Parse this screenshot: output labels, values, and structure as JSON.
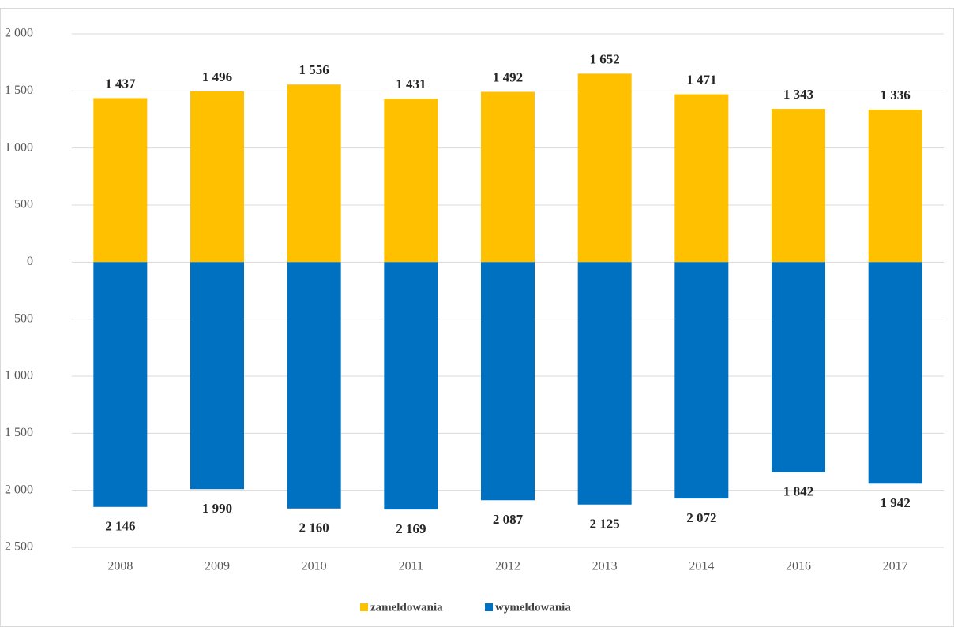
{
  "chart_data": {
    "type": "bar",
    "categories": [
      "2008",
      "2009",
      "2010",
      "2011",
      "2012",
      "2013",
      "2014",
      "2016",
      "2017"
    ],
    "series": [
      {
        "name": "zameldowania",
        "color": "#ffc000",
        "values": [
          1437,
          1496,
          1556,
          1431,
          1492,
          1652,
          1471,
          1343,
          1336
        ],
        "value_labels": [
          "1 437",
          "1 496",
          "1 556",
          "1 431",
          "1 492",
          "1 652",
          "1 471",
          "1 343",
          "1 336"
        ]
      },
      {
        "name": "wymeldowania",
        "color": "#0070c0",
        "values": [
          -2146,
          -1990,
          -2160,
          -2169,
          -2087,
          -2125,
          -2072,
          -1842,
          -1942
        ],
        "value_labels": [
          "2 146",
          "1 990",
          "2 160",
          "2 169",
          "2 087",
          "2 125",
          "2 072",
          "1 842",
          "1 942"
        ]
      }
    ],
    "ylim": [
      -2500,
      2000
    ],
    "yticks": [
      {
        "value": 2000,
        "label": "2 000"
      },
      {
        "value": 1500,
        "label": "1 500"
      },
      {
        "value": 1000,
        "label": "1 000"
      },
      500,
      0,
      {
        "value": -500,
        "label": "500"
      },
      {
        "value": -1000,
        "label": "1 000"
      },
      {
        "value": -1500,
        "label": "1 500"
      },
      {
        "value": -2000,
        "label": "2 000"
      },
      {
        "value": -2500,
        "label": "2 500"
      }
    ],
    "grid": true,
    "legend": "bottom"
  }
}
